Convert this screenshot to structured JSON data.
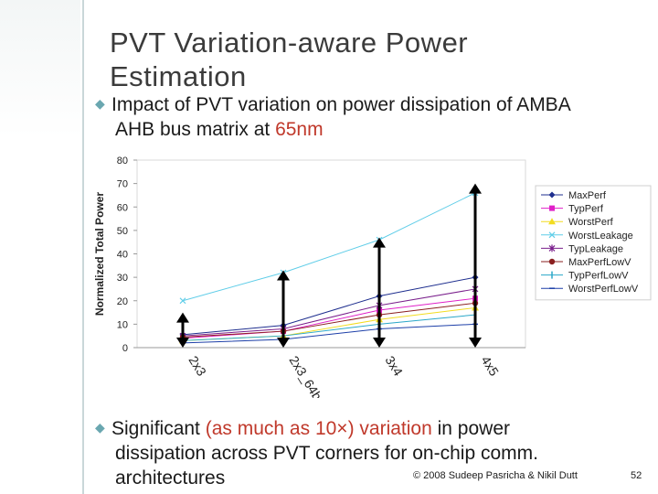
{
  "slide": {
    "title": "PVT Variation-aware Power Estimation",
    "bullet1": {
      "prefix": "Impact of PVT variation on power dissipation of AMBA",
      "cont": "AHB bus matrix at ",
      "highlight": "65nm"
    },
    "bullet2": {
      "prefix": "Significant ",
      "highlight": "(as much as 10×) variation",
      "suffix": " in power",
      "line2": "dissipation across PVT corners for on-chip comm.",
      "line3": "architectures"
    },
    "footer": "© 2008 Sudeep Pasricha  & Nikil Dutt",
    "page_number": "52"
  },
  "chart_data": {
    "type": "line",
    "title": "",
    "xlabel": "",
    "ylabel": "Normalized Total Power",
    "categories": [
      "2x3",
      "2x3_64b",
      "3x4",
      "4x5"
    ],
    "ylim": [
      0,
      80
    ],
    "yticks": [
      "0",
      "10",
      "20",
      "30",
      "40",
      "50",
      "60",
      "70",
      "80"
    ],
    "legend_position": "right",
    "series": [
      {
        "name": "MaxPerf",
        "color": "#1f2f8f",
        "marker": "diamond",
        "values": [
          5.5,
          9.5,
          22,
          30
        ]
      },
      {
        "name": "TypPerf",
        "color": "#e020c8",
        "marker": "square",
        "values": [
          4,
          7,
          16,
          21
        ]
      },
      {
        "name": "WorstPerf",
        "color": "#f2dc20",
        "marker": "triangle",
        "values": [
          3,
          5,
          12,
          17
        ]
      },
      {
        "name": "WorstLeakage",
        "color": "#5fcde8",
        "marker": "x",
        "values": [
          20,
          32,
          46,
          66
        ]
      },
      {
        "name": "TypLeakage",
        "color": "#7a1f8c",
        "marker": "star",
        "values": [
          5,
          8,
          18,
          25
        ]
      },
      {
        "name": "MaxPerfLowV",
        "color": "#8a1f1f",
        "marker": "circle",
        "values": [
          4.5,
          7,
          14,
          19
        ]
      },
      {
        "name": "TypPerfLowV",
        "color": "#2aa7c8",
        "marker": "bar",
        "values": [
          3,
          5,
          10,
          14
        ]
      },
      {
        "name": "WorstPerfLowV",
        "color": "#1d3fa8",
        "marker": "dash",
        "values": [
          2,
          3.5,
          8,
          10
        ]
      }
    ],
    "annotations": [
      {
        "type": "double-arrow",
        "category": "2x3",
        "from": 0,
        "to": 15
      },
      {
        "type": "double-arrow",
        "category": "2x3_64b",
        "from": 0,
        "to": 33
      },
      {
        "type": "double-arrow",
        "category": "3x4",
        "from": 0,
        "to": 47
      },
      {
        "type": "double-arrow",
        "category": "4x5",
        "from": 0,
        "to": 70
      }
    ]
  }
}
